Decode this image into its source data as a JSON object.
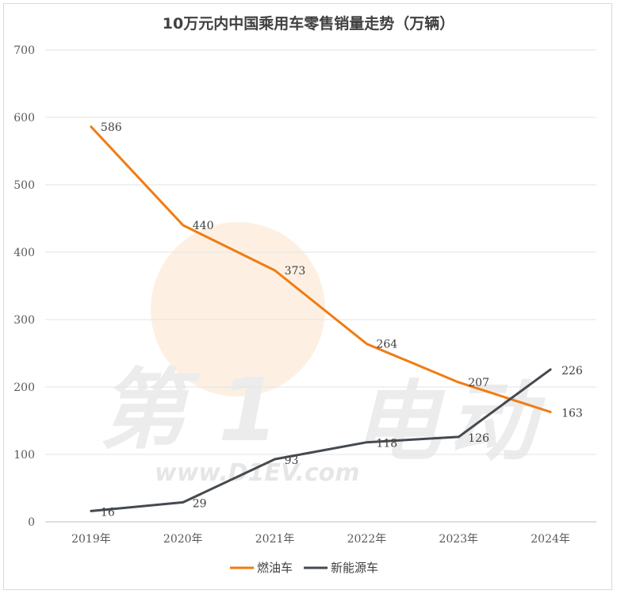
{
  "watermark": {
    "text": "www.D1EV.com",
    "chars": [
      "第",
      "1",
      "电",
      "动"
    ]
  },
  "chart_data": {
    "type": "line",
    "title": "10万元内中国乘用车零售销量走势（万辆）",
    "categories": [
      "2019年",
      "2020年",
      "2021年",
      "2022年",
      "2023年",
      "2024年"
    ],
    "ylim": [
      0,
      700
    ],
    "yticks": [
      0,
      100,
      200,
      300,
      400,
      500,
      600,
      700
    ],
    "grid": true,
    "legend_position": "bottom",
    "series": [
      {
        "name": "燃油车",
        "color": "#f07c12",
        "values": [
          586,
          440,
          373,
          264,
          207,
          163
        ]
      },
      {
        "name": "新能源车",
        "color": "#444a50",
        "values": [
          16,
          29,
          93,
          118,
          126,
          226
        ]
      }
    ]
  }
}
